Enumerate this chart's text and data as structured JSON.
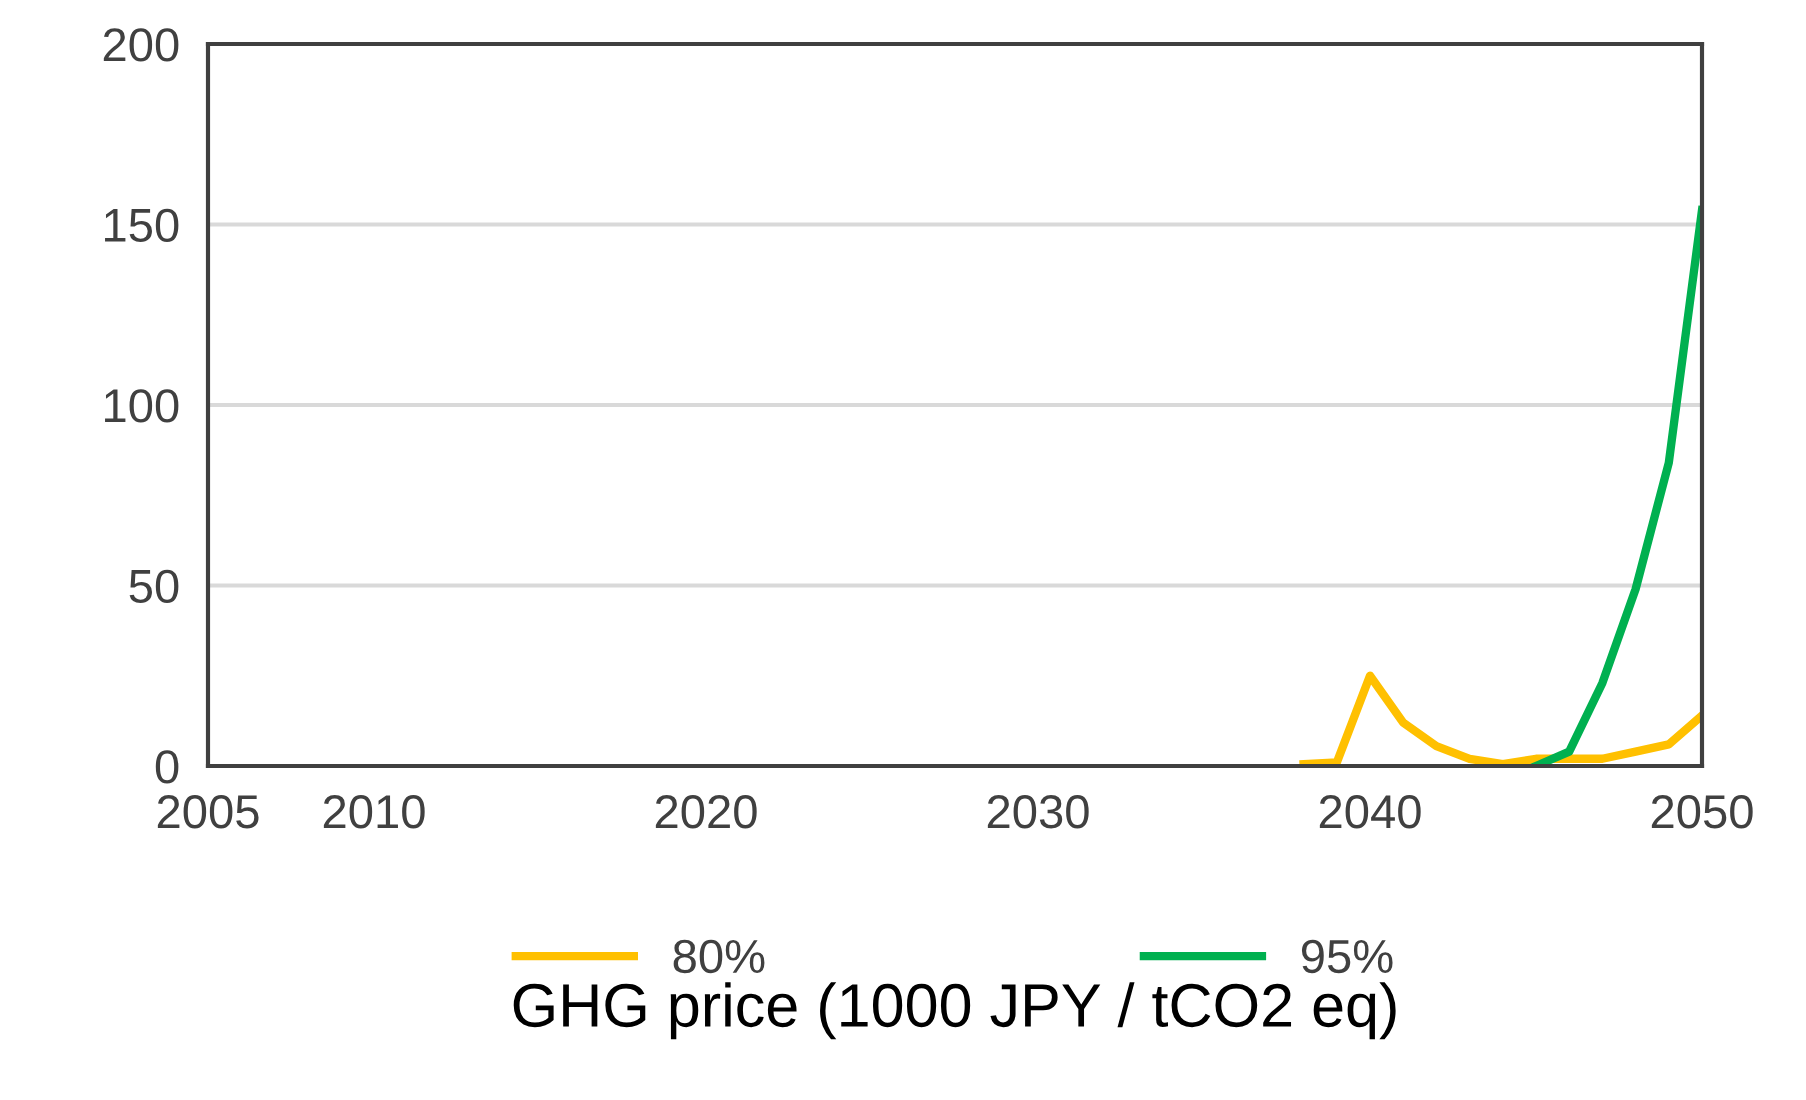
{
  "chart_data": {
    "type": "line",
    "xlabel": "GHG price (1000 JPY / tCO2 eq)",
    "xlim": [
      2005,
      2050
    ],
    "xticks": [
      2005,
      2010,
      2020,
      2030,
      2040,
      2050
    ],
    "ylim": [
      0,
      200
    ],
    "yticks": [
      0,
      50,
      100,
      150,
      200
    ],
    "grid": "y",
    "legend": "bottom",
    "marker": "none",
    "line_style": "solid",
    "series": [
      {
        "name": "80%",
        "color": "#ffc000",
        "x": [
          2038,
          2039,
          2040,
          2041,
          2042,
          2043,
          2044,
          2045,
          2046,
          2047,
          2048,
          2049,
          2050
        ],
        "values": [
          0.5,
          1,
          25,
          12,
          5.5,
          2,
          0.5,
          2,
          2,
          2,
          4,
          6,
          14
        ]
      },
      {
        "name": "95%",
        "color": "#00b050",
        "x": [
          2045,
          2046,
          2047,
          2048,
          2049,
          2050
        ],
        "values": [
          0,
          4,
          23,
          49,
          84,
          154
        ]
      }
    ]
  }
}
